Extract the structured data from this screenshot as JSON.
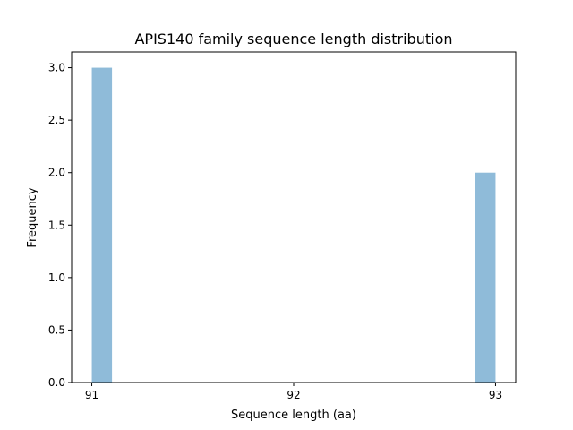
{
  "chart_data": {
    "type": "bar",
    "title": "APIS140 family sequence length distribution",
    "xlabel": "Sequence length (aa)",
    "ylabel": "Frequency",
    "xlim": [
      90.9,
      93.1
    ],
    "ylim": [
      0,
      3.15
    ],
    "xticks": [
      "91",
      "92",
      "93"
    ],
    "yticks": [
      "0.0",
      "0.5",
      "1.0",
      "1.5",
      "2.0",
      "2.5",
      "3.0"
    ],
    "bins": [
      {
        "x0": 91.0,
        "x1": 91.1,
        "count": 3
      },
      {
        "x0": 92.9,
        "x1": 93.0,
        "count": 2
      }
    ],
    "bar_color": "#8fbbd9",
    "grid": false
  }
}
